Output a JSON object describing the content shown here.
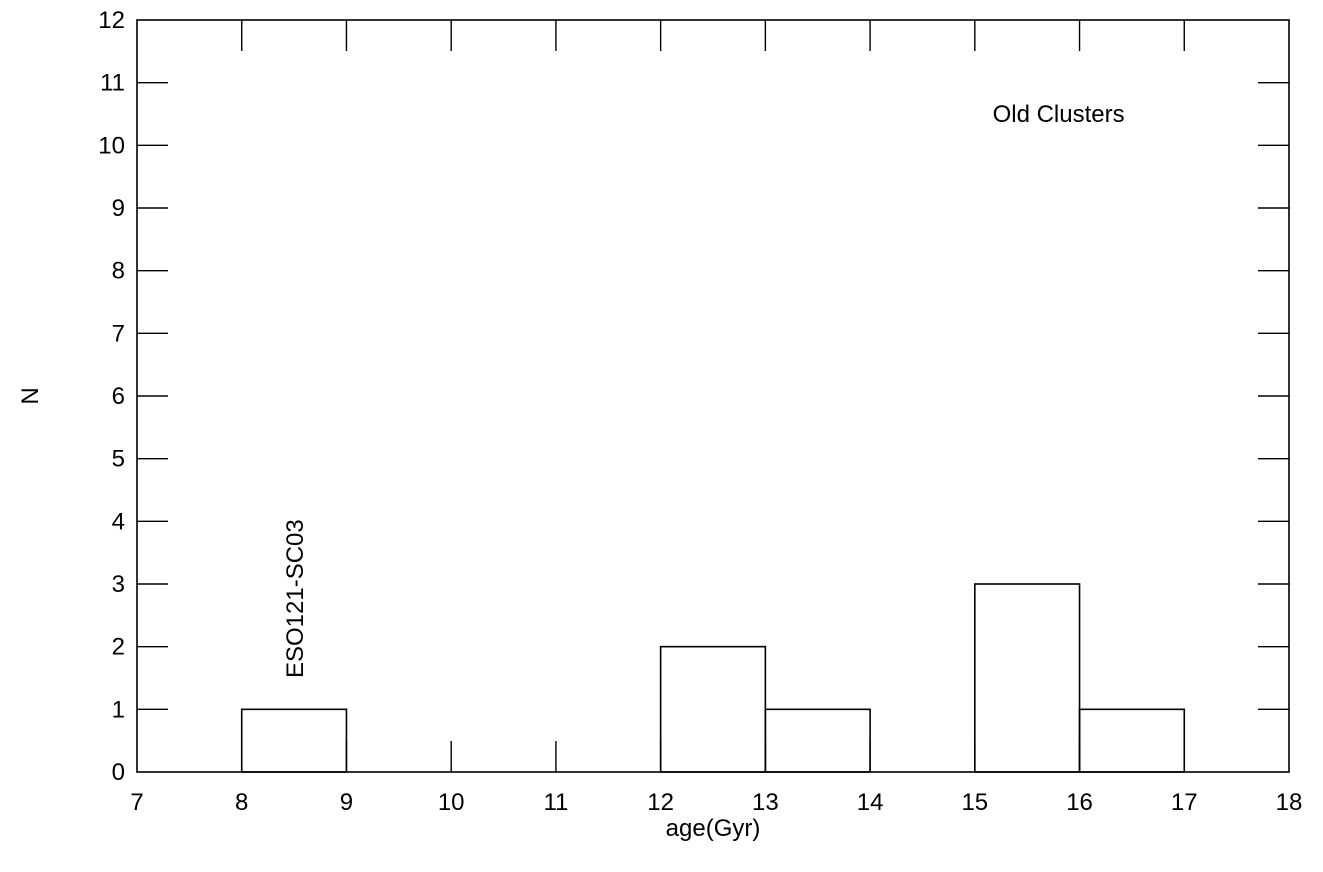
{
  "chart_data": {
    "type": "bar",
    "histogram": true,
    "xlabel": "age(Gyr)",
    "ylabel": "N",
    "xlim": [
      7,
      18
    ],
    "ylim": [
      0,
      12
    ],
    "xticks": [
      7,
      8,
      9,
      10,
      11,
      12,
      13,
      14,
      15,
      16,
      17,
      18
    ],
    "yticks": [
      0,
      1,
      2,
      3,
      4,
      5,
      6,
      7,
      8,
      9,
      10,
      11,
      12
    ],
    "bins": [
      {
        "x0": 7,
        "x1": 8,
        "count": 0
      },
      {
        "x0": 8,
        "x1": 9,
        "count": 1
      },
      {
        "x0": 9,
        "x1": 10,
        "count": 0
      },
      {
        "x0": 10,
        "x1": 11,
        "count": 0
      },
      {
        "x0": 11,
        "x1": 12,
        "count": 0
      },
      {
        "x0": 12,
        "x1": 13,
        "count": 2
      },
      {
        "x0": 13,
        "x1": 14,
        "count": 1
      },
      {
        "x0": 14,
        "x1": 15,
        "count": 0
      },
      {
        "x0": 15,
        "x1": 16,
        "count": 3
      },
      {
        "x0": 16,
        "x1": 17,
        "count": 1
      },
      {
        "x0": 17,
        "x1": 18,
        "count": 0
      }
    ],
    "annotations": [
      {
        "text": "Old Clusters",
        "x": 15.8,
        "y": 10.5,
        "rotation": 0
      },
      {
        "text": "ESO121-SC03",
        "x": 8.5,
        "y": 1.5,
        "rotation": -90
      }
    ],
    "grid": false,
    "legend": "none"
  }
}
